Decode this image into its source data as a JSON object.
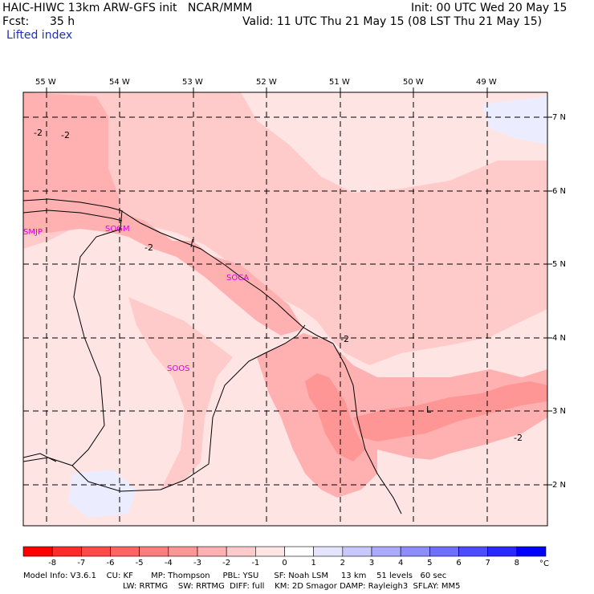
{
  "header": {
    "title": "HAIC-HIWC 13km ARW-GFS init   NCAR/MMM",
    "init": "Init: 00 UTC Wed 20 May 15",
    "fcst_label": "Fcst:",
    "fcst_value": "35 h",
    "valid": "Valid: 11 UTC Thu 21 May 15 (08 LST Thu 21 May 15)",
    "field": "Lifted index"
  },
  "map": {
    "lon_labels": [
      "55 W",
      "54 W",
      "53 W",
      "52 W",
      "51 W",
      "50 W",
      "49 W"
    ],
    "lat_labels": [
      "7 N",
      "6 N",
      "5 N",
      "4 N",
      "3 N",
      "2 N"
    ],
    "stations": [
      "SMJP",
      "SOGM",
      "SOCA",
      "SOOS"
    ],
    "contour_labels": [
      "-2",
      "-2",
      "-2",
      "-2",
      "-2",
      "L"
    ]
  },
  "colorbar": {
    "ticks": [
      "-8",
      "-7",
      "-6",
      "-5",
      "-4",
      "-3",
      "-2",
      "-1",
      "0",
      "1",
      "2",
      "3",
      "4",
      "5",
      "6",
      "7",
      "8"
    ],
    "unit": "°C",
    "colors": [
      "#ff0000",
      "#ff2a2a",
      "#ff4a4a",
      "#ff6464",
      "#ff7d7d",
      "#ff9696",
      "#ffb0b0",
      "#ffcaca",
      "#ffe4e4",
      "#ffffff",
      "#e4e4ff",
      "#c8c8ff",
      "#aaaaff",
      "#8c8cff",
      "#6e6eff",
      "#4b4bff",
      "#2828ff",
      "#0000ff"
    ]
  },
  "footer": {
    "line1": "Model Info: V3.6.1    CU: KF       MP: Thompson     PBL: YSU      SF: Noah LSM     13 km    51 levels   60 sec",
    "line2": "LW: RRTMG    SW: RRTMG  DIFF: full    KM: 2D Smagor DAMP: Rayleigh3  SFLAY: MM5"
  }
}
